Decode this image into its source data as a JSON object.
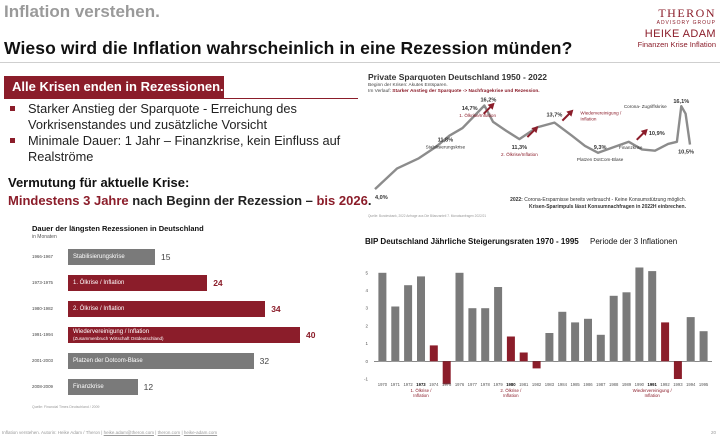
{
  "header": {
    "top_title": "Inflation verstehen.",
    "main_title": "Wieso wird die Inflation wahrscheinlich in eine Rezession münden?"
  },
  "logo": {
    "line1": "THERON",
    "line2": "ADVISORY GROUP",
    "line3": "HEIKE ADAM",
    "line4": "Finanzen Krise Inflation"
  },
  "left": {
    "box_title": "Alle Krisen enden in Rezessionen.",
    "bullets": [
      "Starker Anstieg der Sparquote - Erreichung des Vorkrisenstandes und zusätzliche Vorsicht",
      "Minimale Dauer: 1 Jahr – Finanzkrise, kein Einfluss auf Realströme"
    ],
    "assumption_heading": "Vermutung für aktuelle Krise:",
    "assumption_part1": "Mindestens 3 Jahre",
    "assumption_part2": " nach Beginn der Rezession – ",
    "assumption_part3": "bis 2026",
    "assumption_part4": "."
  },
  "duration": {
    "title": "Dauer der längsten Rezessionen in Deutschland",
    "unit": "in Monaten",
    "source": "Quelle: Financial Times Deutschland / 2009",
    "rows": [
      {
        "period": "1966-1967",
        "label": "Stabilisierungskrise",
        "sub": "",
        "value": "15",
        "num": 15,
        "color": "grey"
      },
      {
        "period": "1973-1975",
        "label": "1. Ölkrise / Inflation",
        "sub": "",
        "value": "24",
        "num": 24,
        "color": "red"
      },
      {
        "period": "1980-1982",
        "label": "2. Ölkrise / Inflation",
        "sub": "",
        "value": "34",
        "num": 34,
        "color": "red"
      },
      {
        "period": "1991-1994",
        "label": "Wiedervereinigung / Inflation",
        "sub": "(Zusammenbruch Wirtschaft Ostdeutschland)",
        "value": "40",
        "num": 40,
        "color": "red"
      },
      {
        "period": "2001-2003",
        "label": "Platzen der Dotcom-Blase",
        "sub": "",
        "value": "32",
        "num": 32,
        "color": "grey"
      },
      {
        "period": "2008-2009",
        "label": "Finanzkrise",
        "sub": "",
        "value": "12",
        "num": 12,
        "color": "grey"
      }
    ]
  },
  "savings": {
    "title": "Private Sparquoten Deutschland 1950 - 2022",
    "sub1": "Beginn der Krisen: Akutes Entsparen.",
    "sub2a": "Im Verlauf: ",
    "sub2b": "Starker Anstieg der Sparquote -> Nachfragekrise und Rezession.",
    "note1a": "2022:",
    "note1b": " Corona-Ersparnisse bereits verbraucht - Keine Konsumstützung möglich.",
    "note2": "Krisen-Sparimpuls lässt Konsumnachfragen in 2022H einbrechen.",
    "source": "Quelle: Bundesbank, 2022 Anfrage aus Die Bilanzanteil 7. Monatsanfragen 2022/21",
    "labels": {
      "v4": "4,0%",
      "v11_8": "11,8%",
      "stab": "Stabilisierungskrise",
      "v14_7": "14,7%",
      "oel1": "1. Ölkrise/Inflation",
      "v16_2": "16,2%",
      "v11_3": "11,3%",
      "oel2": "2. Ölkrise/Inflation",
      "v13_7": "13,7%",
      "wieder": "Wiedervereinigung /",
      "wieder2": "Inflation",
      "v9_3": "9,3%",
      "dotcom": "Platzen DotCom-Blase",
      "v10_9": "10,9%",
      "finanz": "Finanzkrise",
      "corona": "Corona- Zugriffskrise",
      "v16_1": "16,1%",
      "v10_5": "10,5%"
    }
  },
  "gdp": {
    "title": "BIP Deutschland Jährliche Steigerungsraten 1970 - 1995",
    "period_label": "Periode der 3 Inflationen",
    "y_ticks": [
      "5",
      "4",
      "3",
      "2",
      "1",
      "0",
      "-1"
    ],
    "years": [
      "1970",
      "1971",
      "1972",
      "1973",
      "1974",
      "1975",
      "1976",
      "1977",
      "1978",
      "1979",
      "1980",
      "1981",
      "1982",
      "1983",
      "1984",
      "1985",
      "1986",
      "1987",
      "1988",
      "1989",
      "1990",
      "1991",
      "1992",
      "1993",
      "1994",
      "1995"
    ],
    "annotations": [
      {
        "l1": "1. Ölkrise /",
        "l2": "Inflation"
      },
      {
        "l1": "2. Ölkrise /",
        "l2": "Inflation"
      },
      {
        "l1": "Wiedervereinigung /",
        "l2": "Inflation"
      }
    ]
  },
  "chart_data": [
    {
      "type": "bar",
      "title": "Dauer der längsten Rezessionen in Deutschland",
      "ylabel": "in Monaten",
      "categories": [
        "Stabilisierungskrise",
        "1. Ölkrise / Inflation",
        "2. Ölkrise / Inflation",
        "Wiedervereinigung / Inflation",
        "Platzen der Dotcom-Blase",
        "Finanzkrise"
      ],
      "values": [
        15,
        24,
        34,
        40,
        32,
        12
      ]
    },
    {
      "type": "line",
      "title": "Private Sparquoten Deutschland 1950 - 2022",
      "x": [
        1950,
        1955,
        1960,
        1964,
        1967,
        1970,
        1975,
        1977,
        1980,
        1983,
        1987,
        1991,
        1995,
        1998,
        2001,
        2004,
        2008,
        2011,
        2014,
        2017,
        2019,
        2020,
        2021,
        2022
      ],
      "y": [
        4.0,
        7.0,
        8.5,
        10.2,
        11.8,
        12.9,
        16.2,
        13.8,
        12.5,
        11.3,
        13.0,
        13.7,
        11.8,
        10.3,
        9.3,
        10.0,
        10.9,
        9.8,
        9.6,
        10.6,
        10.9,
        16.1,
        15.0,
        10.5
      ],
      "ylim": [
        3,
        17
      ]
    },
    {
      "type": "bar",
      "title": "BIP Deutschland Jährliche Steigerungsraten 1970 - 1995",
      "categories": [
        "1970",
        "1971",
        "1972",
        "1973",
        "1974",
        "1975",
        "1976",
        "1977",
        "1978",
        "1979",
        "1980",
        "1981",
        "1982",
        "1983",
        "1984",
        "1985",
        "1986",
        "1987",
        "1988",
        "1989",
        "1990",
        "1991",
        "1992",
        "1993",
        "1994",
        "1995"
      ],
      "values": [
        5.0,
        3.1,
        4.3,
        4.8,
        0.9,
        -1.3,
        5.0,
        3.0,
        3.0,
        4.2,
        1.4,
        0.5,
        -0.4,
        1.6,
        2.8,
        2.2,
        2.4,
        1.5,
        3.7,
        3.9,
        5.3,
        5.1,
        2.2,
        -1.0,
        2.5,
        1.7
      ],
      "highlighted": [
        "1974",
        "1975",
        "1980",
        "1981",
        "1982",
        "1992",
        "1993"
      ],
      "ylim": [
        -1,
        5.5
      ]
    }
  ]
}
